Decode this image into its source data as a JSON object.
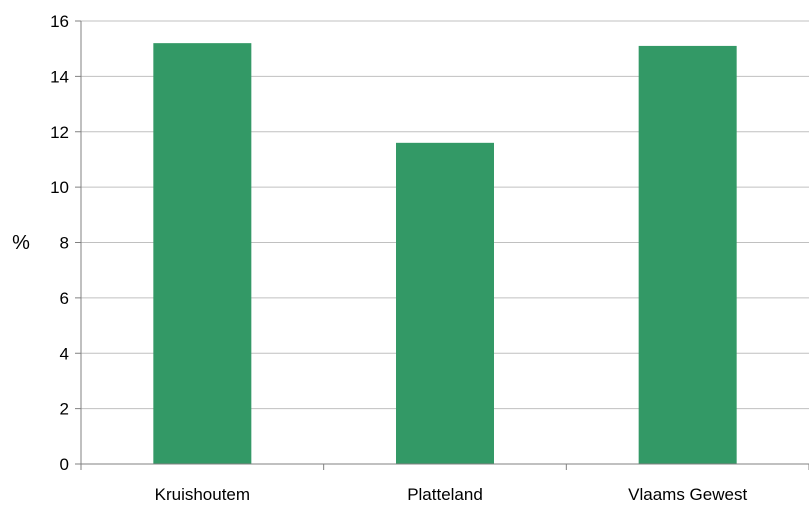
{
  "chart_data": {
    "type": "bar",
    "title": "",
    "xlabel": "",
    "ylabel": "%",
    "ylim": [
      0,
      16
    ],
    "yticks": [
      0,
      2,
      4,
      6,
      8,
      10,
      12,
      14,
      16
    ],
    "grid": true,
    "categories": [
      "Kruishoutem",
      "Platteland",
      "Vlaams Gewest"
    ],
    "values": [
      15.2,
      11.6,
      15.1
    ],
    "bar_color": "#339966",
    "grid_color": "#c0c0c0",
    "axis_color": "#808080"
  }
}
